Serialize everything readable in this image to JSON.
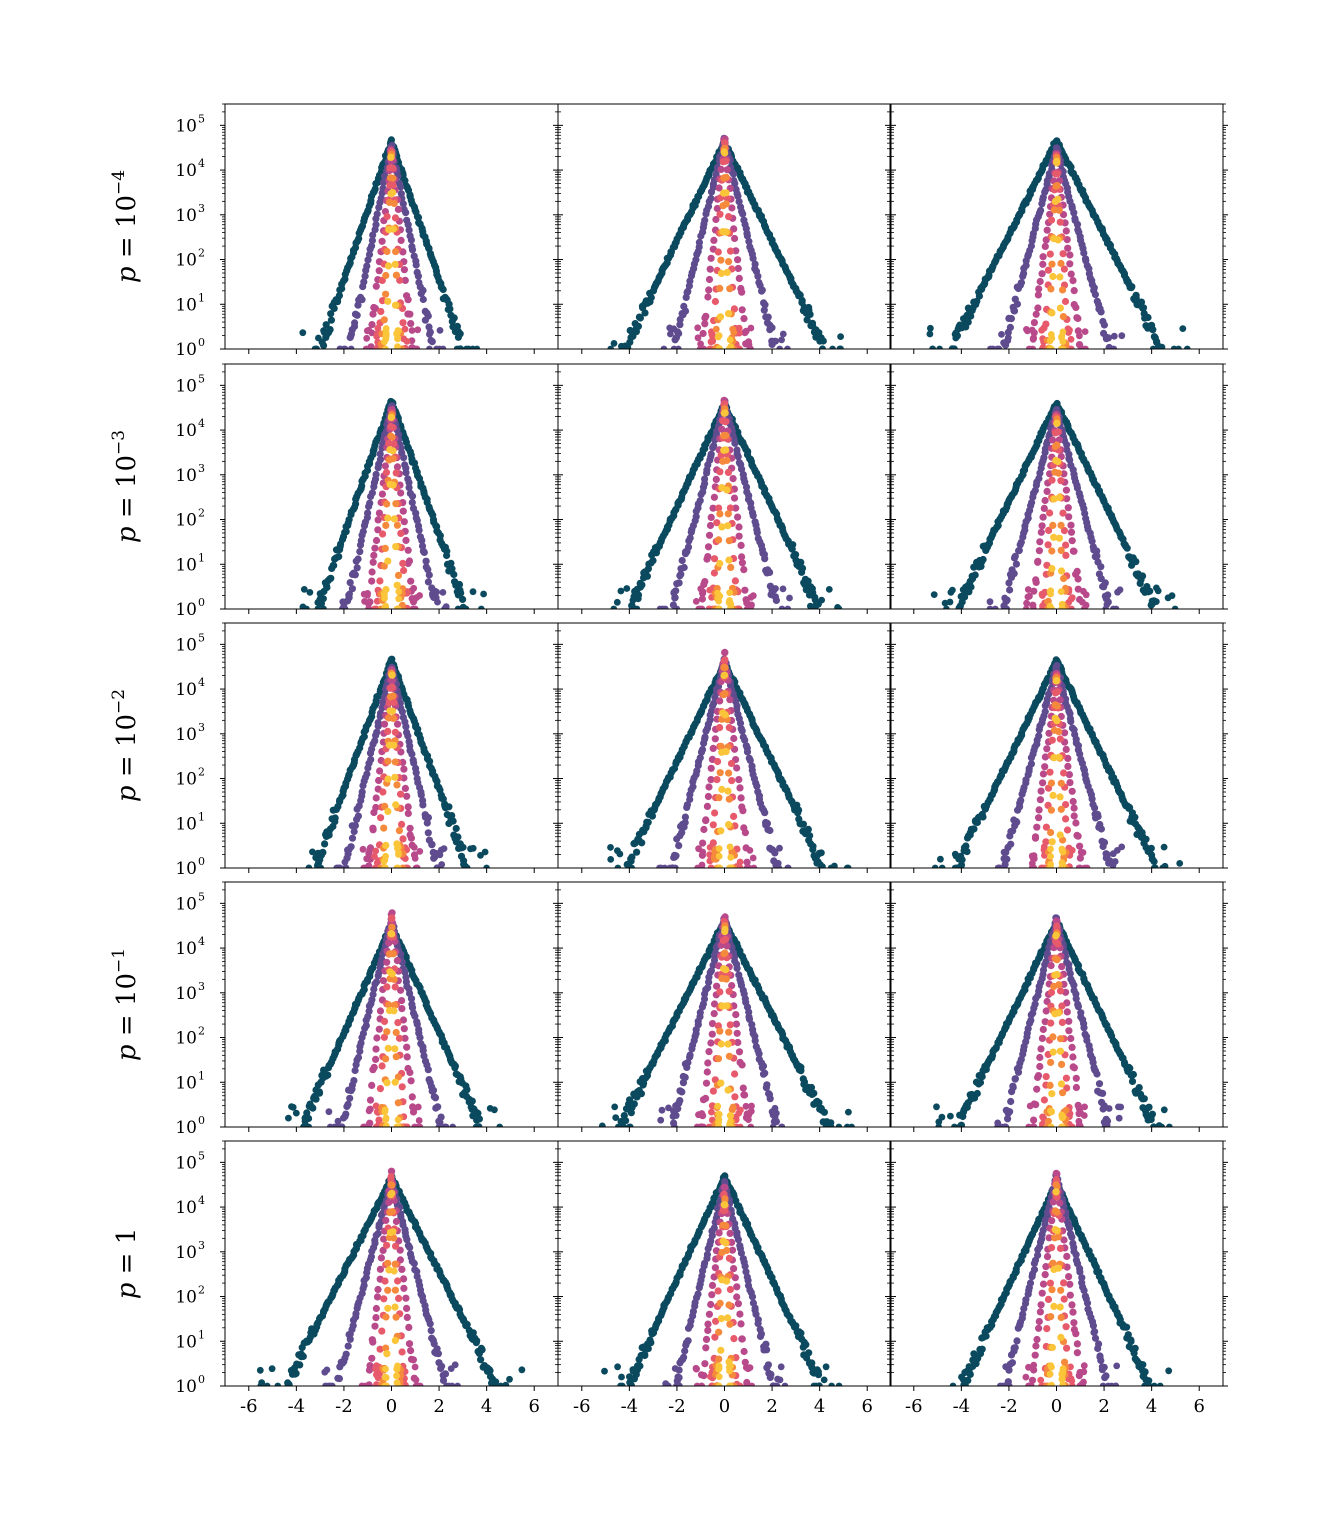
{
  "chart_data": {
    "type": "scatter",
    "layout": "5 rows x 3 columns of small-multiple panels with shared axes",
    "yscale": "log",
    "ylim": [
      1,
      300000
    ],
    "xlim": [
      -7,
      7
    ],
    "x_ticks": [
      -6,
      -4,
      -2,
      0,
      2,
      4,
      6
    ],
    "x_tick_labels": [
      "-6",
      "-4",
      "-2",
      "0",
      "2",
      "4",
      "6"
    ],
    "y_ticks": [
      1,
      10,
      100,
      1000,
      10000,
      100000
    ],
    "y_tick_labels": [
      {
        "base": "10",
        "exp": "0"
      },
      {
        "base": "10",
        "exp": "1"
      },
      {
        "base": "10",
        "exp": "2"
      },
      {
        "base": "10",
        "exp": "3"
      },
      {
        "base": "10",
        "exp": "4"
      },
      {
        "base": "10",
        "exp": "5"
      }
    ],
    "row_labels": [
      {
        "prefix": "p",
        "eq": "=",
        "base": "10",
        "exp": "−4"
      },
      {
        "prefix": "p",
        "eq": "=",
        "base": "10",
        "exp": "−3"
      },
      {
        "prefix": "p",
        "eq": "=",
        "base": "10",
        "exp": "−2"
      },
      {
        "prefix": "p",
        "eq": "=",
        "base": "10",
        "exp": "−1"
      },
      {
        "prefix": "p",
        "eq": "=",
        "base": "1",
        "exp": ""
      }
    ],
    "series_colors": [
      "#0b4a5e",
      "#5e4c8f",
      "#b8498a",
      "#e75a6c",
      "#f58a3c",
      "#fbc53a"
    ],
    "series_note": "unlabeled series plotted as colored points, widest (dark teal) to narrowest (yellow)",
    "panels": [
      {
        "row": 0,
        "col": 0,
        "series": [
          {
            "peak": 45000,
            "slope": 1.55,
            "spread": 5.0
          },
          {
            "peak": 35000,
            "slope": 2.6,
            "spread": 3.2
          },
          {
            "peak": 28000,
            "slope": 5.0,
            "spread": 1.6
          },
          {
            "peak": 25000,
            "slope": 8.0,
            "spread": 1.0
          },
          {
            "peak": 22000,
            "slope": 12.0,
            "spread": 0.6
          },
          {
            "peak": 20000,
            "slope": 18.0,
            "spread": 0.35
          }
        ]
      },
      {
        "row": 0,
        "col": 1,
        "series": [
          {
            "peak": 42000,
            "slope": 1.1,
            "spread": 6.4
          },
          {
            "peak": 48000,
            "slope": 2.2,
            "spread": 3.8
          },
          {
            "peak": 50000,
            "slope": 5.0,
            "spread": 1.5
          },
          {
            "peak": 40000,
            "slope": 9.0,
            "spread": 0.9
          },
          {
            "peak": 30000,
            "slope": 14.0,
            "spread": 0.5
          },
          {
            "peak": 25000,
            "slope": 20.0,
            "spread": 0.3
          }
        ]
      },
      {
        "row": 0,
        "col": 2,
        "series": [
          {
            "peak": 45000,
            "slope": 1.05,
            "spread": 6.4
          },
          {
            "peak": 30000,
            "slope": 2.0,
            "spread": 3.6
          },
          {
            "peak": 22000,
            "slope": 4.2,
            "spread": 1.6
          },
          {
            "peak": 20000,
            "slope": 8.0,
            "spread": 0.9
          },
          {
            "peak": 18000,
            "slope": 13.0,
            "spread": 0.55
          },
          {
            "peak": 15000,
            "slope": 19.0,
            "spread": 0.3
          }
        ]
      },
      {
        "row": 1,
        "col": 0,
        "series": [
          {
            "peak": 45000,
            "slope": 1.5,
            "spread": 5.2
          },
          {
            "peak": 35000,
            "slope": 2.4,
            "spread": 3.4
          },
          {
            "peak": 28000,
            "slope": 4.6,
            "spread": 1.7
          },
          {
            "peak": 25000,
            "slope": 7.5,
            "spread": 1.0
          },
          {
            "peak": 22000,
            "slope": 11.0,
            "spread": 0.6
          },
          {
            "peak": 20000,
            "slope": 17.0,
            "spread": 0.35
          }
        ]
      },
      {
        "row": 1,
        "col": 1,
        "series": [
          {
            "peak": 38000,
            "slope": 1.15,
            "spread": 5.4
          },
          {
            "peak": 42000,
            "slope": 2.1,
            "spread": 3.6
          },
          {
            "peak": 45000,
            "slope": 4.8,
            "spread": 1.6
          },
          {
            "peak": 38000,
            "slope": 8.5,
            "spread": 0.9
          },
          {
            "peak": 30000,
            "slope": 13.0,
            "spread": 0.5
          },
          {
            "peak": 25000,
            "slope": 19.0,
            "spread": 0.3
          }
        ]
      },
      {
        "row": 1,
        "col": 2,
        "series": [
          {
            "peak": 40000,
            "slope": 1.1,
            "spread": 6.0
          },
          {
            "peak": 30000,
            "slope": 2.0,
            "spread": 3.4
          },
          {
            "peak": 22000,
            "slope": 4.2,
            "spread": 1.6
          },
          {
            "peak": 20000,
            "slope": 8.0,
            "spread": 0.9
          },
          {
            "peak": 17000,
            "slope": 13.0,
            "spread": 0.55
          },
          {
            "peak": 15000,
            "slope": 19.0,
            "spread": 0.3
          }
        ]
      },
      {
        "row": 2,
        "col": 0,
        "series": [
          {
            "peak": 45000,
            "slope": 1.45,
            "spread": 5.5
          },
          {
            "peak": 32000,
            "slope": 2.3,
            "spread": 3.4
          },
          {
            "peak": 26000,
            "slope": 4.5,
            "spread": 1.7
          },
          {
            "peak": 24000,
            "slope": 7.5,
            "spread": 1.0
          },
          {
            "peak": 22000,
            "slope": 11.0,
            "spread": 0.6
          },
          {
            "peak": 20000,
            "slope": 17.0,
            "spread": 0.35
          }
        ]
      },
      {
        "row": 2,
        "col": 1,
        "series": [
          {
            "peak": 38000,
            "slope": 1.1,
            "spread": 5.2
          },
          {
            "peak": 45000,
            "slope": 2.1,
            "spread": 3.6
          },
          {
            "peak": 65000,
            "slope": 4.8,
            "spread": 1.6
          },
          {
            "peak": 45000,
            "slope": 8.5,
            "spread": 0.9
          },
          {
            "peak": 30000,
            "slope": 13.0,
            "spread": 0.5
          },
          {
            "peak": 20000,
            "slope": 19.0,
            "spread": 0.3
          }
        ]
      },
      {
        "row": 2,
        "col": 2,
        "series": [
          {
            "peak": 42000,
            "slope": 1.1,
            "spread": 5.8
          },
          {
            "peak": 32000,
            "slope": 2.0,
            "spread": 3.5
          },
          {
            "peak": 22000,
            "slope": 4.2,
            "spread": 1.6
          },
          {
            "peak": 20000,
            "slope": 8.0,
            "spread": 0.9
          },
          {
            "peak": 17000,
            "slope": 13.0,
            "spread": 0.55
          },
          {
            "peak": 15000,
            "slope": 19.0,
            "spread": 0.3
          }
        ]
      },
      {
        "row": 3,
        "col": 0,
        "series": [
          {
            "peak": 32000,
            "slope": 1.2,
            "spread": 6.2
          },
          {
            "peak": 45000,
            "slope": 2.2,
            "spread": 3.6
          },
          {
            "peak": 60000,
            "slope": 4.8,
            "spread": 1.6
          },
          {
            "peak": 45000,
            "slope": 8.5,
            "spread": 0.9
          },
          {
            "peak": 30000,
            "slope": 13.0,
            "spread": 0.5
          },
          {
            "peak": 20000,
            "slope": 19.0,
            "spread": 0.3
          }
        ]
      },
      {
        "row": 3,
        "col": 1,
        "series": [
          {
            "peak": 40000,
            "slope": 1.05,
            "spread": 6.2
          },
          {
            "peak": 45000,
            "slope": 2.1,
            "spread": 3.6
          },
          {
            "peak": 48000,
            "slope": 4.8,
            "spread": 1.6
          },
          {
            "peak": 38000,
            "slope": 8.5,
            "spread": 0.9
          },
          {
            "peak": 30000,
            "slope": 13.0,
            "spread": 0.5
          },
          {
            "peak": 25000,
            "slope": 19.0,
            "spread": 0.3
          }
        ]
      },
      {
        "row": 3,
        "col": 2,
        "series": [
          {
            "peak": 38000,
            "slope": 1.1,
            "spread": 6.2
          },
          {
            "peak": 45000,
            "slope": 2.1,
            "spread": 3.5
          },
          {
            "peak": 40000,
            "slope": 4.5,
            "spread": 1.6
          },
          {
            "peak": 30000,
            "slope": 8.0,
            "spread": 0.9
          },
          {
            "peak": 22000,
            "slope": 13.0,
            "spread": 0.55
          },
          {
            "peak": 18000,
            "slope": 19.0,
            "spread": 0.3
          }
        ]
      },
      {
        "row": 4,
        "col": 0,
        "series": [
          {
            "peak": 45000,
            "slope": 1.05,
            "spread": 6.8
          },
          {
            "peak": 40000,
            "slope": 2.0,
            "spread": 4.2
          },
          {
            "peak": 60000,
            "slope": 4.8,
            "spread": 1.7
          },
          {
            "peak": 45000,
            "slope": 8.5,
            "spread": 0.9
          },
          {
            "peak": 30000,
            "slope": 13.0,
            "spread": 0.5
          },
          {
            "peak": 20000,
            "slope": 19.0,
            "spread": 0.3
          }
        ]
      },
      {
        "row": 4,
        "col": 1,
        "series": [
          {
            "peak": 48000,
            "slope": 1.15,
            "spread": 6.0
          },
          {
            "peak": 35000,
            "slope": 2.2,
            "spread": 3.2
          },
          {
            "peak": 28000,
            "slope": 4.5,
            "spread": 1.6
          },
          {
            "peak": 20000,
            "slope": 8.0,
            "spread": 0.9
          },
          {
            "peak": 15000,
            "slope": 13.0,
            "spread": 0.55
          },
          {
            "peak": 12000,
            "slope": 19.0,
            "spread": 0.3
          }
        ]
      },
      {
        "row": 4,
        "col": 2,
        "series": [
          {
            "peak": 35000,
            "slope": 1.15,
            "spread": 6.2
          },
          {
            "peak": 50000,
            "slope": 2.2,
            "spread": 3.4
          },
          {
            "peak": 55000,
            "slope": 4.6,
            "spread": 1.6
          },
          {
            "peak": 40000,
            "slope": 8.5,
            "spread": 0.9
          },
          {
            "peak": 30000,
            "slope": 13.0,
            "spread": 0.5
          },
          {
            "peak": 22000,
            "slope": 19.0,
            "spread": 0.3
          }
        ]
      }
    ]
  }
}
